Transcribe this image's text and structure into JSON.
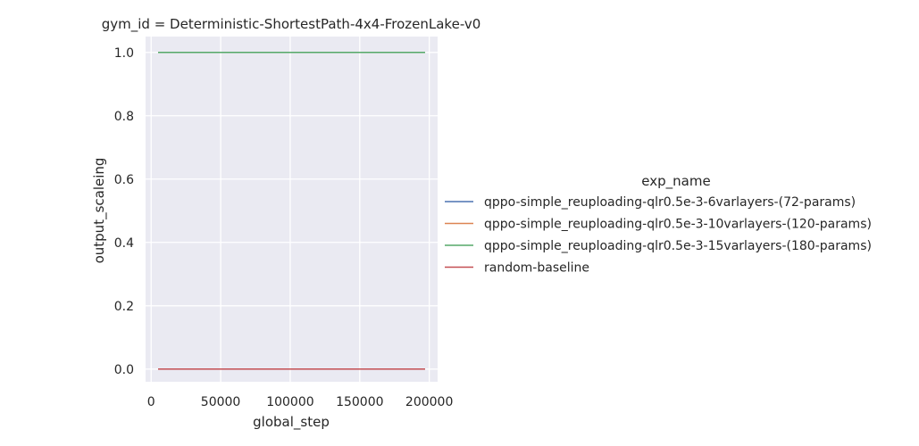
{
  "chart_data": {
    "type": "line",
    "title": "gym_id = Deterministic-ShortestPath-4x4-FrozenLake-v0",
    "xlabel": "global_step",
    "ylabel": "output_scaleing",
    "xlim": [
      -4000,
      206000
    ],
    "ylim": [
      -0.04,
      1.05
    ],
    "xticks": [
      0,
      50000,
      100000,
      150000,
      200000
    ],
    "xtick_labels": [
      "0",
      "50000",
      "100000",
      "150000",
      "200000"
    ],
    "yticks": [
      0.0,
      0.2,
      0.4,
      0.6,
      0.8,
      1.0
    ],
    "ytick_labels": [
      "0.0",
      "0.2",
      "0.4",
      "0.6",
      "0.8",
      "1.0"
    ],
    "grid": true,
    "legend": {
      "title": "exp_name",
      "placement": "right"
    },
    "series": [
      {
        "name": "qppo-simple_reuploading-qlr0.5e-3-6varlayers-(72-params)",
        "color": "#4c72b0",
        "x": [
          5000,
          197000
        ],
        "y": [
          1.0,
          1.0
        ]
      },
      {
        "name": "qppo-simple_reuploading-qlr0.5e-3-10varlayers-(120-params)",
        "color": "#dd8452",
        "x": [
          5000,
          197000
        ],
        "y": [
          1.0,
          1.0
        ]
      },
      {
        "name": "qppo-simple_reuploading-qlr0.5e-3-15varlayers-(180-params)",
        "color": "#55a868",
        "x": [
          5000,
          197000
        ],
        "y": [
          1.0,
          1.0
        ]
      },
      {
        "name": "random-baseline",
        "color": "#c44e52",
        "x": [
          5000,
          197000
        ],
        "y": [
          0.0,
          0.0
        ]
      }
    ]
  },
  "colors": {
    "plot_background": "#eaeaf2",
    "grid": "#ffffff",
    "text": "#262626"
  }
}
